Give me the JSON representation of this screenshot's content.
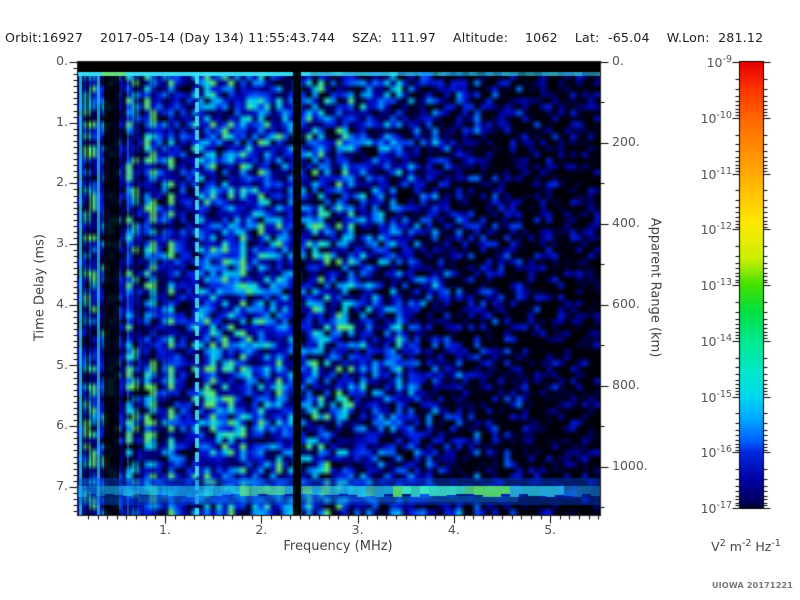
{
  "header": {
    "segments": [
      "Orbit:16927",
      "2017-05-14 (Day 134) 11:55:43.744",
      "SZA:  111.97",
      "Altitude:    1062",
      "Lat:  -65.04",
      "W.Lon:  281.12"
    ]
  },
  "watermark": "UIOWA 20171221",
  "chart_data": {
    "type": "heatmap",
    "title": "",
    "xlabel": "Frequency (MHz)",
    "ylabel": "Time Delay (ms)",
    "y2label": "Apparent Range (km)",
    "x_range_mhz": [
      0.1,
      5.52
    ],
    "y_range_ms": [
      0.0,
      7.46
    ],
    "y2_range_km": [
      0,
      1120
    ],
    "x_ticks": {
      "values": [
        1,
        2,
        3,
        4,
        5
      ],
      "labels": [
        "1.",
        "2.",
        "3.",
        "4.",
        "5."
      ],
      "minor_step": 0.1
    },
    "y_ticks": {
      "values": [
        0,
        1,
        2,
        3,
        4,
        5,
        6,
        7
      ],
      "labels": [
        "0.",
        "1.",
        "2.",
        "3.",
        "4.",
        "5.",
        "6.",
        "7."
      ],
      "minor_step": 0.1
    },
    "y2_ticks": {
      "values": [
        0,
        200,
        400,
        600,
        800,
        1000
      ],
      "labels": [
        "0.",
        "200.",
        "400.",
        "600.",
        "800.",
        "1000."
      ],
      "minor_step": 100
    },
    "colorbar": {
      "scale": "log",
      "base": "10",
      "exponents": [
        "-9",
        "-10",
        "-11",
        "-12",
        "-13",
        "-14",
        "-15",
        "-16",
        "-17"
      ],
      "units_parts": [
        [
          "V",
          "2"
        ],
        [
          "m",
          "-2"
        ],
        [
          "Hz",
          "-1"
        ]
      ],
      "stops": [
        [
          0.0,
          "#e80000"
        ],
        [
          0.06,
          "#ff3300"
        ],
        [
          0.125,
          "#ff6600"
        ],
        [
          0.25,
          "#ffaa00"
        ],
        [
          0.36,
          "#ffe800"
        ],
        [
          0.44,
          "#ccf000"
        ],
        [
          0.5,
          "#44e000"
        ],
        [
          0.56,
          "#00e040"
        ],
        [
          0.625,
          "#00e890"
        ],
        [
          0.7,
          "#00e8d0"
        ],
        [
          0.75,
          "#00d8f0"
        ],
        [
          0.8,
          "#00a8ff"
        ],
        [
          0.85,
          "#0060ff"
        ],
        [
          0.875,
          "#0028e0"
        ],
        [
          0.94,
          "#0000a0"
        ],
        [
          0.985,
          "#000060"
        ],
        [
          1.0,
          "#000028"
        ]
      ]
    },
    "features": [
      {
        "name": "transmitter-blank-band",
        "time_delay_ms": [
          0.0,
          0.17
        ],
        "color": "black"
      },
      {
        "name": "zero-delay-echo-line",
        "time_delay_ms": [
          0.18,
          0.26
        ],
        "frequency_mhz": [
          0.1,
          5.5
        ],
        "color": "cyan",
        "note": "brightest below 2.4 MHz, greenish near 0.35 MHz"
      },
      {
        "name": "low-frequency-interference-stripes",
        "frequency_mhz": [
          0.1,
          0.8
        ],
        "note": "alternating bright cyan and black vertical stripes"
      },
      {
        "name": "bright-dashed-vertical-line",
        "frequency_mhz": 1.35,
        "color": "cyan"
      },
      {
        "name": "data-gap-vertical",
        "frequency_mhz": [
          2.33,
          2.42
        ],
        "color": "black"
      },
      {
        "name": "surface-echo-band",
        "time_delay_ms": [
          7.0,
          7.25
        ],
        "note": "bright cyan horizontal band across all frequencies; green segments between 3.3 and 4.55 MHz"
      },
      {
        "name": "noise-floor",
        "note": "mottled blue noise, progressively darker with more black patches above 3 MHz"
      }
    ],
    "render": {
      "seed": 987654,
      "cell": 6,
      "colormap_stops": [
        [
          0.0,
          "#000000"
        ],
        [
          0.14,
          "#000040"
        ],
        [
          0.3,
          "#0000a0"
        ],
        [
          0.5,
          "#0020e8"
        ],
        [
          0.68,
          "#0080ff"
        ],
        [
          0.82,
          "#00ccf0"
        ],
        [
          0.92,
          "#30e8c0"
        ],
        [
          1.0,
          "#60e868"
        ]
      ],
      "base_profile": [
        [
          0.1,
          0.58
        ],
        [
          0.5,
          0.54
        ],
        [
          1.0,
          0.52
        ],
        [
          1.6,
          0.54
        ],
        [
          2.2,
          0.52
        ],
        [
          2.7,
          0.46
        ],
        [
          3.2,
          0.42
        ],
        [
          3.8,
          0.37
        ],
        [
          4.4,
          0.3
        ],
        [
          5.0,
          0.26
        ],
        [
          5.5,
          0.24
        ]
      ]
    }
  }
}
